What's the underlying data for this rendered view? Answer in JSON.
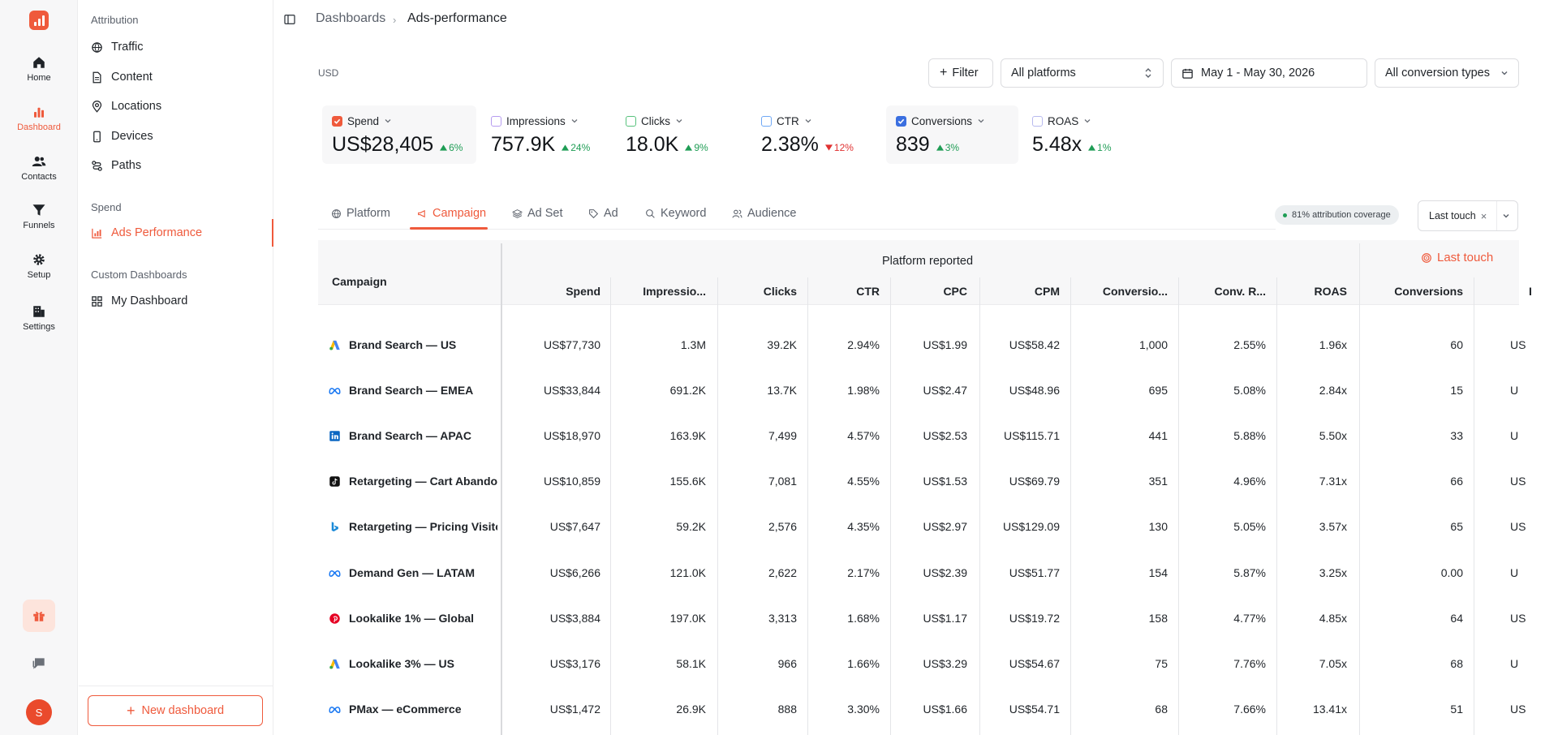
{
  "rail": {
    "items": [
      {
        "label": "Home",
        "icon": "home-icon"
      },
      {
        "label": "Dashboard",
        "icon": "bar-chart-icon"
      },
      {
        "label": "Contacts",
        "icon": "users-icon"
      },
      {
        "label": "Funnels",
        "icon": "funnel-icon"
      },
      {
        "label": "Setup",
        "icon": "gear-icon"
      },
      {
        "label": "Settings",
        "icon": "building-icon"
      }
    ],
    "avatar": "S",
    "accent": "#ef5a3c"
  },
  "subnav": {
    "section_attribution": "Attribution",
    "attribution_items": [
      "Traffic",
      "Content",
      "Locations",
      "Devices",
      "Paths"
    ],
    "section_spend": "Spend",
    "spend_item": "Ads Performance",
    "section_custom": "Custom Dashboards",
    "custom_item": "My Dashboard",
    "new_dashboard": "New dashboard"
  },
  "breadcrumb": {
    "parent": "Dashboards",
    "current": "Ads-performance"
  },
  "toolbar": {
    "currency": "USD",
    "filter": "Filter",
    "platforms": "All platforms",
    "date_range": "May 1 - May 30, 2026",
    "conversion_types": "All conversion types"
  },
  "kpis": [
    {
      "label": "Spend",
      "value": "US$28,405",
      "delta": "6%",
      "dir": "up",
      "checked": true,
      "color": "#ef5a3c"
    },
    {
      "label": "Impressions",
      "value": "757.9K",
      "delta": "24%",
      "dir": "up",
      "checked": false,
      "color": "#b69cf0"
    },
    {
      "label": "Clicks",
      "value": "18.0K",
      "delta": "9%",
      "dir": "up",
      "checked": false,
      "color": "#58c27d"
    },
    {
      "label": "CTR",
      "value": "2.38%",
      "delta": "12%",
      "dir": "down",
      "checked": false,
      "color": "#6fa8f5"
    },
    {
      "label": "Conversions",
      "value": "839",
      "delta": "3%",
      "dir": "up",
      "checked": true,
      "color": "#3b6fe0"
    },
    {
      "label": "ROAS",
      "value": "5.48x",
      "delta": "1%",
      "dir": "up",
      "checked": false,
      "color": "#b7b9ee"
    }
  ],
  "tabs": [
    "Platform",
    "Campaign",
    "Ad Set",
    "Ad",
    "Keyword",
    "Audience"
  ],
  "active_tab": "Campaign",
  "coverage": "81% attribution coverage",
  "attribution_model": "Last touch",
  "table": {
    "group_platform": "Platform reported",
    "group_model": "Last touch",
    "columns": [
      "Campaign",
      "Spend",
      "Impressio...",
      "Clicks",
      "CTR",
      "CPC",
      "CPM",
      "Conversio...",
      "Conv. R...",
      "ROAS",
      "Conversions",
      "I"
    ],
    "rows": [
      {
        "platform": "google-ads-icon",
        "name": "Brand Search — US",
        "spend": "US$77,730",
        "impr": "1.3M",
        "clicks": "39.2K",
        "ctr": "2.94%",
        "cpc": "US$1.99",
        "cpm": "US$58.42",
        "conv": "1,000",
        "convr": "2.55%",
        "roas": "1.96x",
        "lt_conv": "60",
        "lt_next": "US"
      },
      {
        "platform": "meta-icon",
        "name": "Brand Search — EMEA",
        "spend": "US$33,844",
        "impr": "691.2K",
        "clicks": "13.7K",
        "ctr": "1.98%",
        "cpc": "US$2.47",
        "cpm": "US$48.96",
        "conv": "695",
        "convr": "5.08%",
        "roas": "2.84x",
        "lt_conv": "15",
        "lt_next": "U"
      },
      {
        "platform": "linkedin-icon",
        "name": "Brand Search — APAC",
        "spend": "US$18,970",
        "impr": "163.9K",
        "clicks": "7,499",
        "ctr": "4.57%",
        "cpc": "US$2.53",
        "cpm": "US$115.71",
        "conv": "441",
        "convr": "5.88%",
        "roas": "5.50x",
        "lt_conv": "33",
        "lt_next": "U"
      },
      {
        "platform": "tiktok-icon",
        "name": "Retargeting — Cart Abandon",
        "spend": "US$10,859",
        "impr": "155.6K",
        "clicks": "7,081",
        "ctr": "4.55%",
        "cpc": "US$1.53",
        "cpm": "US$69.79",
        "conv": "351",
        "convr": "4.96%",
        "roas": "7.31x",
        "lt_conv": "66",
        "lt_next": "US"
      },
      {
        "platform": "bing-icon",
        "name": "Retargeting — Pricing Visito",
        "spend": "US$7,647",
        "impr": "59.2K",
        "clicks": "2,576",
        "ctr": "4.35%",
        "cpc": "US$2.97",
        "cpm": "US$129.09",
        "conv": "130",
        "convr": "5.05%",
        "roas": "3.57x",
        "lt_conv": "65",
        "lt_next": "US"
      },
      {
        "platform": "meta-icon",
        "name": "Demand Gen — LATAM",
        "spend": "US$6,266",
        "impr": "121.0K",
        "clicks": "2,622",
        "ctr": "2.17%",
        "cpc": "US$2.39",
        "cpm": "US$51.77",
        "conv": "154",
        "convr": "5.87%",
        "roas": "3.25x",
        "lt_conv": "0.00",
        "lt_next": "U"
      },
      {
        "platform": "pinterest-icon",
        "name": "Lookalike 1% — Global",
        "spend": "US$3,884",
        "impr": "197.0K",
        "clicks": "3,313",
        "ctr": "1.68%",
        "cpc": "US$1.17",
        "cpm": "US$19.72",
        "conv": "158",
        "convr": "4.77%",
        "roas": "4.85x",
        "lt_conv": "64",
        "lt_next": "US"
      },
      {
        "platform": "google-ads-icon",
        "name": "Lookalike 3% — US",
        "spend": "US$3,176",
        "impr": "58.1K",
        "clicks": "966",
        "ctr": "1.66%",
        "cpc": "US$3.29",
        "cpm": "US$54.67",
        "conv": "75",
        "convr": "7.76%",
        "roas": "7.05x",
        "lt_conv": "68",
        "lt_next": "U"
      },
      {
        "platform": "meta-icon",
        "name": "PMax — eCommerce",
        "spend": "US$1,472",
        "impr": "26.9K",
        "clicks": "888",
        "ctr": "3.30%",
        "cpc": "US$1.66",
        "cpm": "US$54.71",
        "conv": "68",
        "convr": "7.66%",
        "roas": "13.41x",
        "lt_conv": "51",
        "lt_next": "US"
      }
    ]
  }
}
